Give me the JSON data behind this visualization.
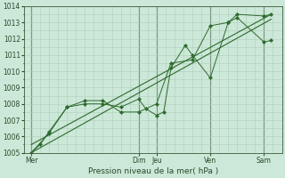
{
  "title": "Pression niveau de la mer( hPa )",
  "ylim": [
    1005,
    1014
  ],
  "yticks": [
    1005,
    1006,
    1007,
    1008,
    1009,
    1010,
    1011,
    1012,
    1013,
    1014
  ],
  "background_color": "#cce8d8",
  "grid_color": "#b0ccbb",
  "line_color": "#2d6a2d",
  "x_day_labels": [
    "Mer",
    "Dim",
    "Jeu",
    "Ven",
    "Sam"
  ],
  "x_day_positions": [
    0.0,
    3.0,
    3.5,
    5.0,
    6.5
  ],
  "xlim": [
    -0.2,
    7.0
  ],
  "series1_x": [
    0.0,
    0.25,
    0.5,
    1.0,
    1.5,
    2.0,
    2.5,
    3.0,
    3.2,
    3.5,
    3.7,
    3.9,
    4.3,
    4.5,
    5.0,
    5.5,
    5.75,
    6.5,
    6.7
  ],
  "series1_y": [
    1005.0,
    1005.5,
    1006.3,
    1007.8,
    1008.0,
    1008.0,
    1007.8,
    1008.3,
    1007.7,
    1007.3,
    1007.5,
    1010.2,
    1011.6,
    1011.0,
    1009.6,
    1013.0,
    1013.5,
    1013.4,
    1013.5
  ],
  "series2_x": [
    0.0,
    0.5,
    1.0,
    1.5,
    2.0,
    2.5,
    3.0,
    3.5,
    3.9,
    4.5,
    5.0,
    5.5,
    5.75,
    6.5,
    6.7
  ],
  "series2_y": [
    1005.0,
    1006.2,
    1007.8,
    1008.2,
    1008.2,
    1007.5,
    1007.5,
    1008.0,
    1010.5,
    1010.7,
    1012.8,
    1013.0,
    1013.3,
    1011.8,
    1011.9
  ],
  "trend1_x": [
    0.0,
    6.7
  ],
  "trend1_y": [
    1005.0,
    1013.2
  ],
  "trend2_x": [
    0.0,
    6.7
  ],
  "trend2_y": [
    1005.5,
    1013.5
  ],
  "vline_positions": [
    0.0,
    3.0,
    3.5,
    5.0,
    6.5
  ]
}
